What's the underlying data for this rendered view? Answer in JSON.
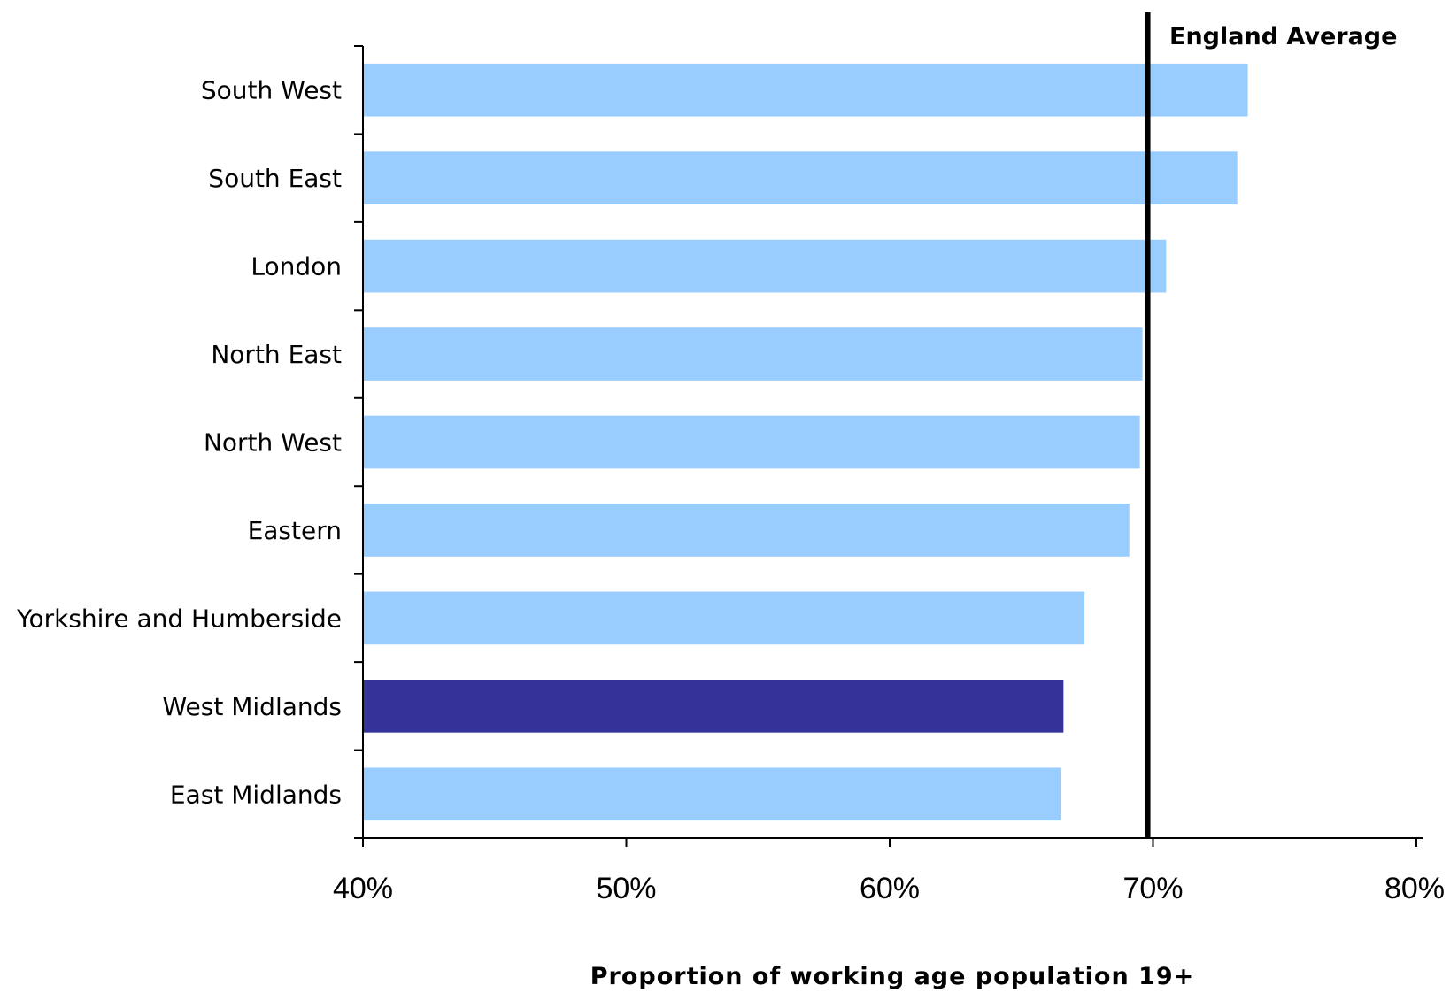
{
  "chart_data": {
    "type": "bar",
    "orientation": "horizontal",
    "categories": [
      "South West",
      "South East",
      "London",
      "North East",
      "North West",
      "Eastern",
      "Yorkshire and Humberside",
      "West Midlands",
      "East Midlands"
    ],
    "values": [
      73.6,
      73.2,
      70.5,
      69.6,
      69.5,
      69.1,
      67.4,
      66.6,
      66.5
    ],
    "highlight": "West Midlands",
    "xlabel": "Proportion of working age population 19+",
    "ylabel": "",
    "xlim": [
      40,
      80
    ],
    "x_ticks": [
      "40%",
      "50%",
      "60%",
      "70%",
      "80%"
    ],
    "reference_line": {
      "label": "England Average",
      "value": 69.8
    },
    "colors": {
      "bar": "#99ccff",
      "highlight": "#333399",
      "reference": "#000000"
    },
    "grid": false,
    "legend": "none"
  }
}
